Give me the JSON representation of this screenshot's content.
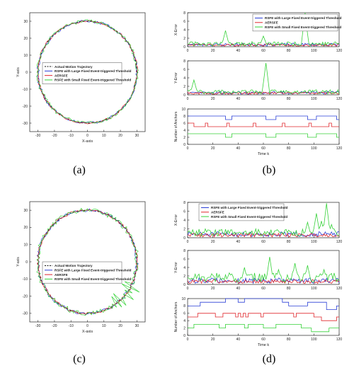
{
  "colors": {
    "actual": "#111111",
    "large": "#2a3fd6",
    "aerspe": "#e0262b",
    "small": "#37d23a"
  },
  "panels": [
    {
      "caption": "(a)"
    },
    {
      "caption": "(b)"
    },
    {
      "caption": "(c)"
    },
    {
      "caption": "(d)"
    }
  ],
  "chart_data": [
    {
      "id": "a",
      "type": "line",
      "xlabel": "X-axis",
      "ylabel": "Y-axis",
      "xlim": [
        -35,
        35
      ],
      "ylim": [
        -35,
        35
      ],
      "xticks": [
        -30,
        -20,
        -10,
        0,
        10,
        20,
        30
      ],
      "yticks": [
        -30,
        -20,
        -10,
        0,
        10,
        20,
        30
      ],
      "legend": [
        "Actual Motion Trajectory",
        "RSFE with Large Fixed Event-triggered Threshold",
        "AERSFE",
        "RSFE with Small Fixed Event-triggered Threshold"
      ],
      "legend_position": "center-left",
      "series": [
        {
          "name": "Actual Motion Trajectory",
          "shape": "circle",
          "radius": 30,
          "center": [
            0,
            0
          ],
          "style": "dashed"
        },
        {
          "name": "RSFE with Large Fixed Event-triggered Threshold",
          "shape": "circle",
          "radius": 30,
          "noise": 0.8
        },
        {
          "name": "AERSFE",
          "shape": "circle",
          "radius": 30,
          "noise": 0.6
        },
        {
          "name": "RSFE with Small Fixed Event-triggered Threshold",
          "shape": "circle",
          "radius": 30,
          "noise": 1.0
        }
      ]
    },
    {
      "id": "b",
      "type": "line",
      "subplots": [
        {
          "ylabel": "X-Error",
          "xlim": [
            0,
            120
          ],
          "ylim": [
            0,
            8
          ],
          "yticks": [
            0,
            2,
            4,
            6,
            8
          ],
          "xticks": [
            0,
            20,
            40,
            60,
            80,
            100,
            120
          ],
          "legend": [
            "RSFE with Large Fixed Event-triggered Threshold",
            "AERSFE",
            "RSFE with Small Fixed Event-triggered Threshold"
          ],
          "legend_position": "top-right",
          "series": [
            {
              "name": "RSFE with Large Fixed Event-triggered Threshold",
              "base": 0.5,
              "spikes": []
            },
            {
              "name": "AERSFE",
              "base": 0.4,
              "spikes": []
            },
            {
              "name": "RSFE with Small Fixed Event-triggered Threshold",
              "base": 0.7,
              "spikes": [
                [
                  30,
                  3.8
                ],
                [
                  60,
                  2.5
                ],
                [
                  93,
                  8
                ]
              ]
            }
          ]
        },
        {
          "ylabel": "Y-Error",
          "xlim": [
            0,
            120
          ],
          "ylim": [
            0,
            8
          ],
          "yticks": [
            0,
            2,
            4,
            6,
            8
          ],
          "xticks": [
            0,
            20,
            40,
            60,
            80,
            100,
            120
          ],
          "series": [
            {
              "name": "RSFE with Large Fixed Event-triggered Threshold",
              "base": 0.5,
              "spikes": []
            },
            {
              "name": "AERSFE",
              "base": 0.4,
              "spikes": []
            },
            {
              "name": "RSFE with Small Fixed Event-triggered Threshold",
              "base": 0.7,
              "spikes": [
                [
                  5,
                  3.5
                ],
                [
                  62,
                  7.5
                ]
              ]
            }
          ]
        },
        {
          "ylabel": "Number of Anchors",
          "xlabel": "Time k",
          "xlim": [
            0,
            120
          ],
          "ylim": [
            0,
            10
          ],
          "yticks": [
            0,
            2,
            4,
            6,
            8,
            10
          ],
          "xticks": [
            0,
            20,
            40,
            60,
            80,
            100,
            120
          ],
          "series": [
            {
              "name": "RSFE with Large Fixed Event-triggered Threshold",
              "steps": [
                [
                  0,
                  8
                ],
                [
                  30,
                  7
                ],
                [
                  35,
                  8
                ],
                [
                  62,
                  7
                ],
                [
                  70,
                  8
                ],
                [
                  95,
                  7
                ],
                [
                  102,
                  8
                ],
                [
                  118,
                  7
                ]
              ]
            },
            {
              "name": "AERSFE",
              "steps": [
                [
                  0,
                  6
                ],
                [
                  5,
                  5
                ],
                [
                  14,
                  6
                ],
                [
                  16,
                  5
                ],
                [
                  31,
                  6
                ],
                [
                  33,
                  5
                ],
                [
                  52,
                  6
                ],
                [
                  54,
                  5
                ],
                [
                  75,
                  6
                ],
                [
                  77,
                  5
                ],
                [
                  96,
                  6
                ],
                [
                  98,
                  5
                ],
                [
                  112,
                  6
                ],
                [
                  114,
                  5
                ]
              ]
            },
            {
              "name": "RSFE with Small Fixed Event-triggered Threshold",
              "steps": [
                [
                  0,
                  3
                ],
                [
                  30,
                  2
                ],
                [
                  35,
                  3
                ],
                [
                  62,
                  2
                ],
                [
                  70,
                  3
                ],
                [
                  95,
                  2
                ],
                [
                  102,
                  3
                ],
                [
                  118,
                  2
                ]
              ]
            }
          ]
        }
      ]
    },
    {
      "id": "c",
      "type": "line",
      "xlabel": "X-axis",
      "ylabel": "Y-axis",
      "xlim": [
        -35,
        35
      ],
      "ylim": [
        -35,
        35
      ],
      "xticks": [
        -30,
        -20,
        -10,
        0,
        10,
        20,
        30
      ],
      "yticks": [
        -30,
        -20,
        -10,
        0,
        10,
        20,
        30
      ],
      "legend": [
        "Actual Motion Trajectory",
        "RSFE with Large Fixed Event-triggered Threshold",
        "AERSFE",
        "RSFE with Small Fixed Event-triggered Threshold"
      ],
      "legend_position": "center",
      "series": [
        {
          "name": "Actual Motion Trajectory",
          "shape": "circle",
          "radius": 30,
          "center": [
            0,
            0
          ],
          "style": "dashed"
        },
        {
          "name": "RSFE with Large Fixed Event-triggered Threshold",
          "shape": "circle",
          "radius": 30,
          "noise": 0.9
        },
        {
          "name": "AERSFE",
          "shape": "circle",
          "radius": 30,
          "noise": 0.7
        },
        {
          "name": "RSFE with Small Fixed Event-triggered Threshold",
          "shape": "circle",
          "radius": 30,
          "noise": 1.4,
          "excursion": {
            "from_deg": 300,
            "to_deg": 335,
            "amp": 6
          }
        }
      ]
    },
    {
      "id": "d",
      "type": "line",
      "subplots": [
        {
          "ylabel": "X-Error",
          "xlim": [
            0,
            120
          ],
          "ylim": [
            0,
            8
          ],
          "yticks": [
            0,
            2,
            4,
            6,
            8
          ],
          "xticks": [
            0,
            20,
            40,
            60,
            80,
            100,
            120
          ],
          "legend": [
            "RSFE with Large Fixed Event-triggered Threshold",
            "AERSFE",
            "RSFE with Small Fixed Event-triggered Threshold"
          ],
          "legend_position": "top-left",
          "series": [
            {
              "name": "RSFE with Large Fixed Event-triggered Threshold",
              "base": 0.8,
              "spikes": []
            },
            {
              "name": "AERSFE",
              "base": 0.6,
              "spikes": []
            },
            {
              "name": "RSFE with Small Fixed Event-triggered Threshold",
              "base": 1.2,
              "spikes": [
                [
                  95,
                  3.5
                ],
                [
                  102,
                  5.5
                ],
                [
                  106,
                  3.8
                ],
                [
                  110,
                  7.8
                ],
                [
                  114,
                  3
                ]
              ]
            }
          ]
        },
        {
          "ylabel": "Y-Error",
          "xlim": [
            0,
            120
          ],
          "ylim": [
            0,
            8
          ],
          "yticks": [
            0,
            2,
            4,
            6,
            8
          ],
          "xticks": [
            0,
            20,
            40,
            60,
            80,
            100,
            120
          ],
          "series": [
            {
              "name": "RSFE with Large Fixed Event-triggered Threshold",
              "base": 0.9,
              "spikes": []
            },
            {
              "name": "AERSFE",
              "base": 0.7,
              "spikes": []
            },
            {
              "name": "RSFE with Small Fixed Event-triggered Threshold",
              "base": 1.6,
              "spikes": [
                [
                  45,
                  4
                ],
                [
                  65,
                  6.5
                ],
                [
                  72,
                  3.5
                ],
                [
                  85,
                  5
                ],
                [
                  95,
                  4.5
                ],
                [
                  108,
                  3.5
                ]
              ]
            }
          ]
        },
        {
          "ylabel": "Number of Anchors",
          "xlabel": "Time k",
          "xlim": [
            0,
            120
          ],
          "ylim": [
            0,
            10
          ],
          "yticks": [
            0,
            2,
            4,
            6,
            8,
            10
          ],
          "xticks": [
            0,
            20,
            40,
            60,
            80,
            100,
            120
          ],
          "series": [
            {
              "name": "RSFE with Large Fixed Event-triggered Threshold",
              "steps": [
                [
                  0,
                  8
                ],
                [
                  10,
                  9
                ],
                [
                  30,
                  10
                ],
                [
                  40,
                  9
                ],
                [
                  45,
                  10
                ],
                [
                  75,
                  9
                ],
                [
                  80,
                  8
                ],
                [
                  95,
                  9
                ],
                [
                  110,
                  7
                ],
                [
                  118,
                  8
                ]
              ]
            },
            {
              "name": "AERSFE",
              "steps": [
                [
                  0,
                  5
                ],
                [
                  8,
                  6
                ],
                [
                  22,
                  5
                ],
                [
                  28,
                  6
                ],
                [
                  38,
                  5
                ],
                [
                  40,
                  6
                ],
                [
                  42,
                  5
                ],
                [
                  44,
                  6
                ],
                [
                  46,
                  5
                ],
                [
                  48,
                  6
                ],
                [
                  58,
                  5
                ],
                [
                  60,
                  6
                ],
                [
                  84,
                  5
                ],
                [
                  86,
                  6
                ],
                [
                  100,
                  5
                ],
                [
                  106,
                  4
                ],
                [
                  118,
                  5
                ]
              ]
            },
            {
              "name": "RSFE with Small Fixed Event-triggered Threshold",
              "steps": [
                [
                  0,
                  2
                ],
                [
                  5,
                  3
                ],
                [
                  25,
                  2
                ],
                [
                  30,
                  3
                ],
                [
                  45,
                  2
                ],
                [
                  48,
                  3
                ],
                [
                  60,
                  2
                ],
                [
                  70,
                  3
                ],
                [
                  90,
                  2
                ],
                [
                  98,
                  1
                ],
                [
                  112,
                  2
                ]
              ]
            }
          ]
        }
      ]
    }
  ]
}
